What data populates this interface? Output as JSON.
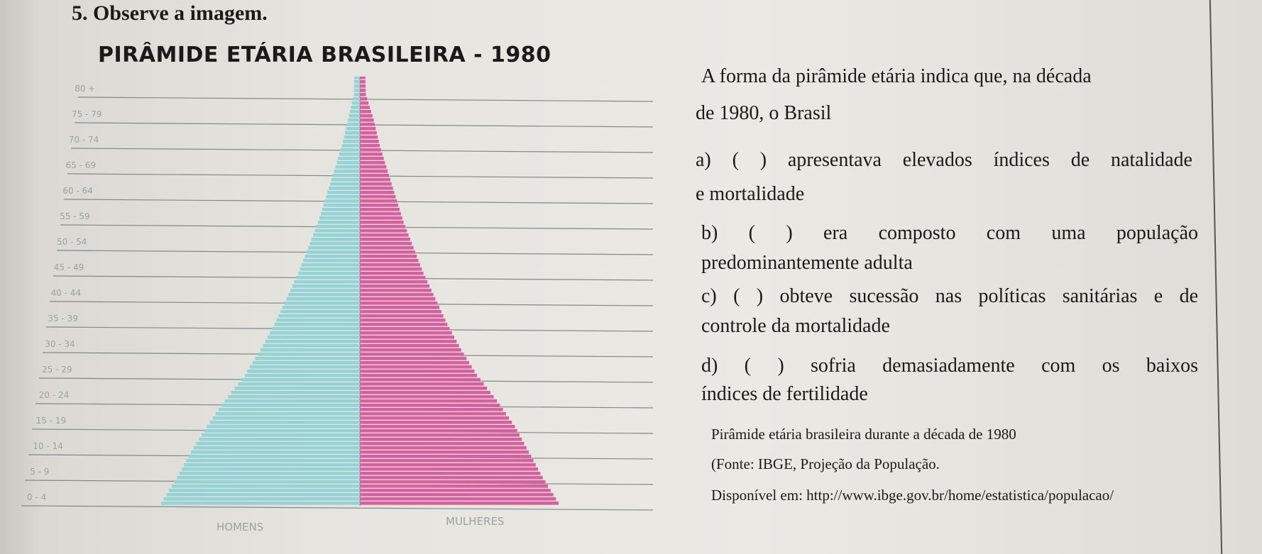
{
  "question": {
    "number_title": "5. Observe a imagem."
  },
  "chart_title": "PIRÂMIDE ETÁRIA BRASILEIRA - 1980",
  "chart_data": {
    "type": "bar",
    "orientation": "horizontal-population-pyramid",
    "title": "PIRÂMIDE ETÁRIA BRASILEIRA - 1980",
    "categories": [
      "0 - 4",
      "5 - 9",
      "10 - 14",
      "15 - 19",
      "20 - 24",
      "25 - 29",
      "30 - 34",
      "35 - 39",
      "40 - 44",
      "45 - 49",
      "50 - 54",
      "55 - 59",
      "60 - 64",
      "65 - 69",
      "70 - 74",
      "75 - 79",
      "80 +"
    ],
    "series": [
      {
        "name": "HOMENS",
        "color": "#94d4d6",
        "values": [
          100,
          92,
          85,
          77,
          68,
          58,
          50,
          43,
          37,
          31,
          26,
          21,
          17,
          13,
          9,
          6,
          3
        ]
      },
      {
        "name": "MULHERES",
        "color": "#d95f9e",
        "values": [
          100,
          92,
          85,
          78,
          69,
          59,
          51,
          44,
          38,
          32,
          27,
          22,
          18,
          14,
          10,
          7,
          3
        ]
      }
    ],
    "xlabel": "",
    "ylabel": "",
    "gridlines": true
  },
  "statements": {
    "intro_1": "A forma da pirâmide etária indica que, na década",
    "intro_2": "de 1980, o Brasil",
    "a_1": "a) (  ) apresentava elevados índices de natalidade",
    "a_2": "e mortalidade",
    "b_1": "b) ( )   era   composto   com   uma   população",
    "b_2": "predominantemente adulta",
    "c_1": "c) (  ) obteve sucessão nas políticas sanitárias e de",
    "c_2": "controle da mortalidade",
    "d_1": "d) ( ) sofria demasiadamente com os baixos",
    "d_2": "índices de fertilidade"
  },
  "source": {
    "line_1": "Pirâmide etária brasileira durante a década de 1980",
    "line_2": "(Fonte: IBGE, Projeção da População.",
    "line_3": "Disponível em: http://www.ibge.gov.br/home/estatistica/populacao/"
  }
}
